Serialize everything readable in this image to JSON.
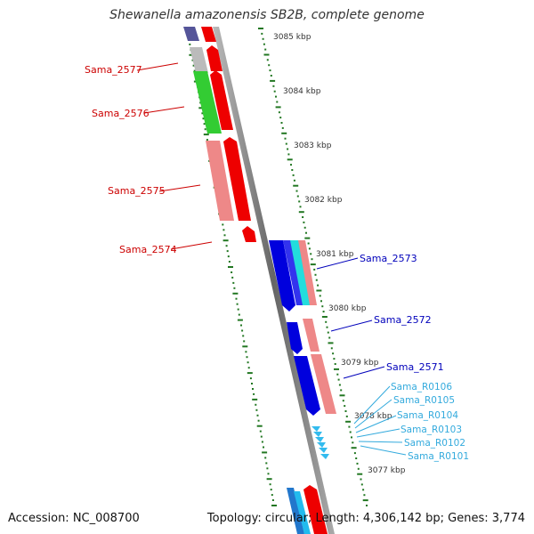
{
  "title": "Shewanella amazonensis SB2B, complete genome",
  "footer": {
    "accession": "Accession: NC_008700",
    "summary": "Topology: circular; Length: 4,306,142 bp; Genes: 3,774"
  },
  "scale_labels": [
    "3085 kbp",
    "3084 kbp",
    "3083 kbp",
    "3082 kbp",
    "3081 kbp",
    "3080 kbp",
    "3079 kbp",
    "3078 kbp",
    "3077 kbp"
  ],
  "genes_left": [
    {
      "id": "Sama_2577",
      "color": "#cc0000"
    },
    {
      "id": "Sama_2576",
      "color": "#cc0000"
    },
    {
      "id": "Sama_2575",
      "color": "#cc0000"
    },
    {
      "id": "Sama_2574",
      "color": "#cc0000"
    }
  ],
  "genes_right": [
    {
      "id": "Sama_2573",
      "color": "#0000bb"
    },
    {
      "id": "Sama_2572",
      "color": "#0000bb"
    },
    {
      "id": "Sama_2571",
      "color": "#0000bb"
    }
  ],
  "rna_genes": [
    {
      "id": "Sama_R0106",
      "color": "#33aadd"
    },
    {
      "id": "Sama_R0105",
      "color": "#33aadd"
    },
    {
      "id": "Sama_R0104",
      "color": "#33aadd"
    },
    {
      "id": "Sama_R0103",
      "color": "#33aadd"
    },
    {
      "id": "Sama_R0102",
      "color": "#33aadd"
    },
    {
      "id": "Sama_R0101",
      "color": "#33aadd"
    }
  ],
  "colors": {
    "forward_cds": "#ee0000",
    "reverse_cds": "#0000dd",
    "pink_feature": "#ee8888",
    "green_feature": "#33cc33",
    "gray_feature": "#bbbbbb",
    "purple_feature": "#555599",
    "cyan_feature": "#22dddd",
    "rna": "#33bbee",
    "backbone": "#888888",
    "ticks": "#227722"
  }
}
